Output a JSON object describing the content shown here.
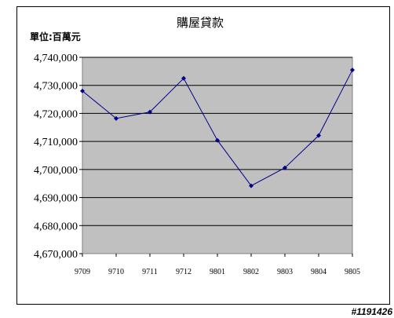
{
  "chart_data": {
    "type": "line",
    "title": "購屋貸款",
    "unit_label": "單位:百萬元",
    "categories": [
      "9709",
      "9710",
      "9711",
      "9712",
      "9801",
      "9802",
      "9803",
      "9804",
      "9805"
    ],
    "series": [
      {
        "values": [
          4728000,
          4718200,
          4720500,
          4732500,
          4710400,
          4694200,
          4700600,
          4712100,
          4735500
        ]
      }
    ],
    "ylim": [
      4670000,
      4740000
    ],
    "yticks": [
      4670000,
      4680000,
      4690000,
      4700000,
      4710000,
      4720000,
      4730000,
      4740000
    ],
    "ytick_labels": [
      "4,670,000",
      "4,680,000",
      "4,690,000",
      "4,700,000",
      "4,710,000",
      "4,720,000",
      "4,730,000",
      "4,740,000"
    ],
    "grid": true,
    "plot_bg": "#c0c0c0",
    "line_color": "#00008b"
  },
  "watermark": "#1191426"
}
